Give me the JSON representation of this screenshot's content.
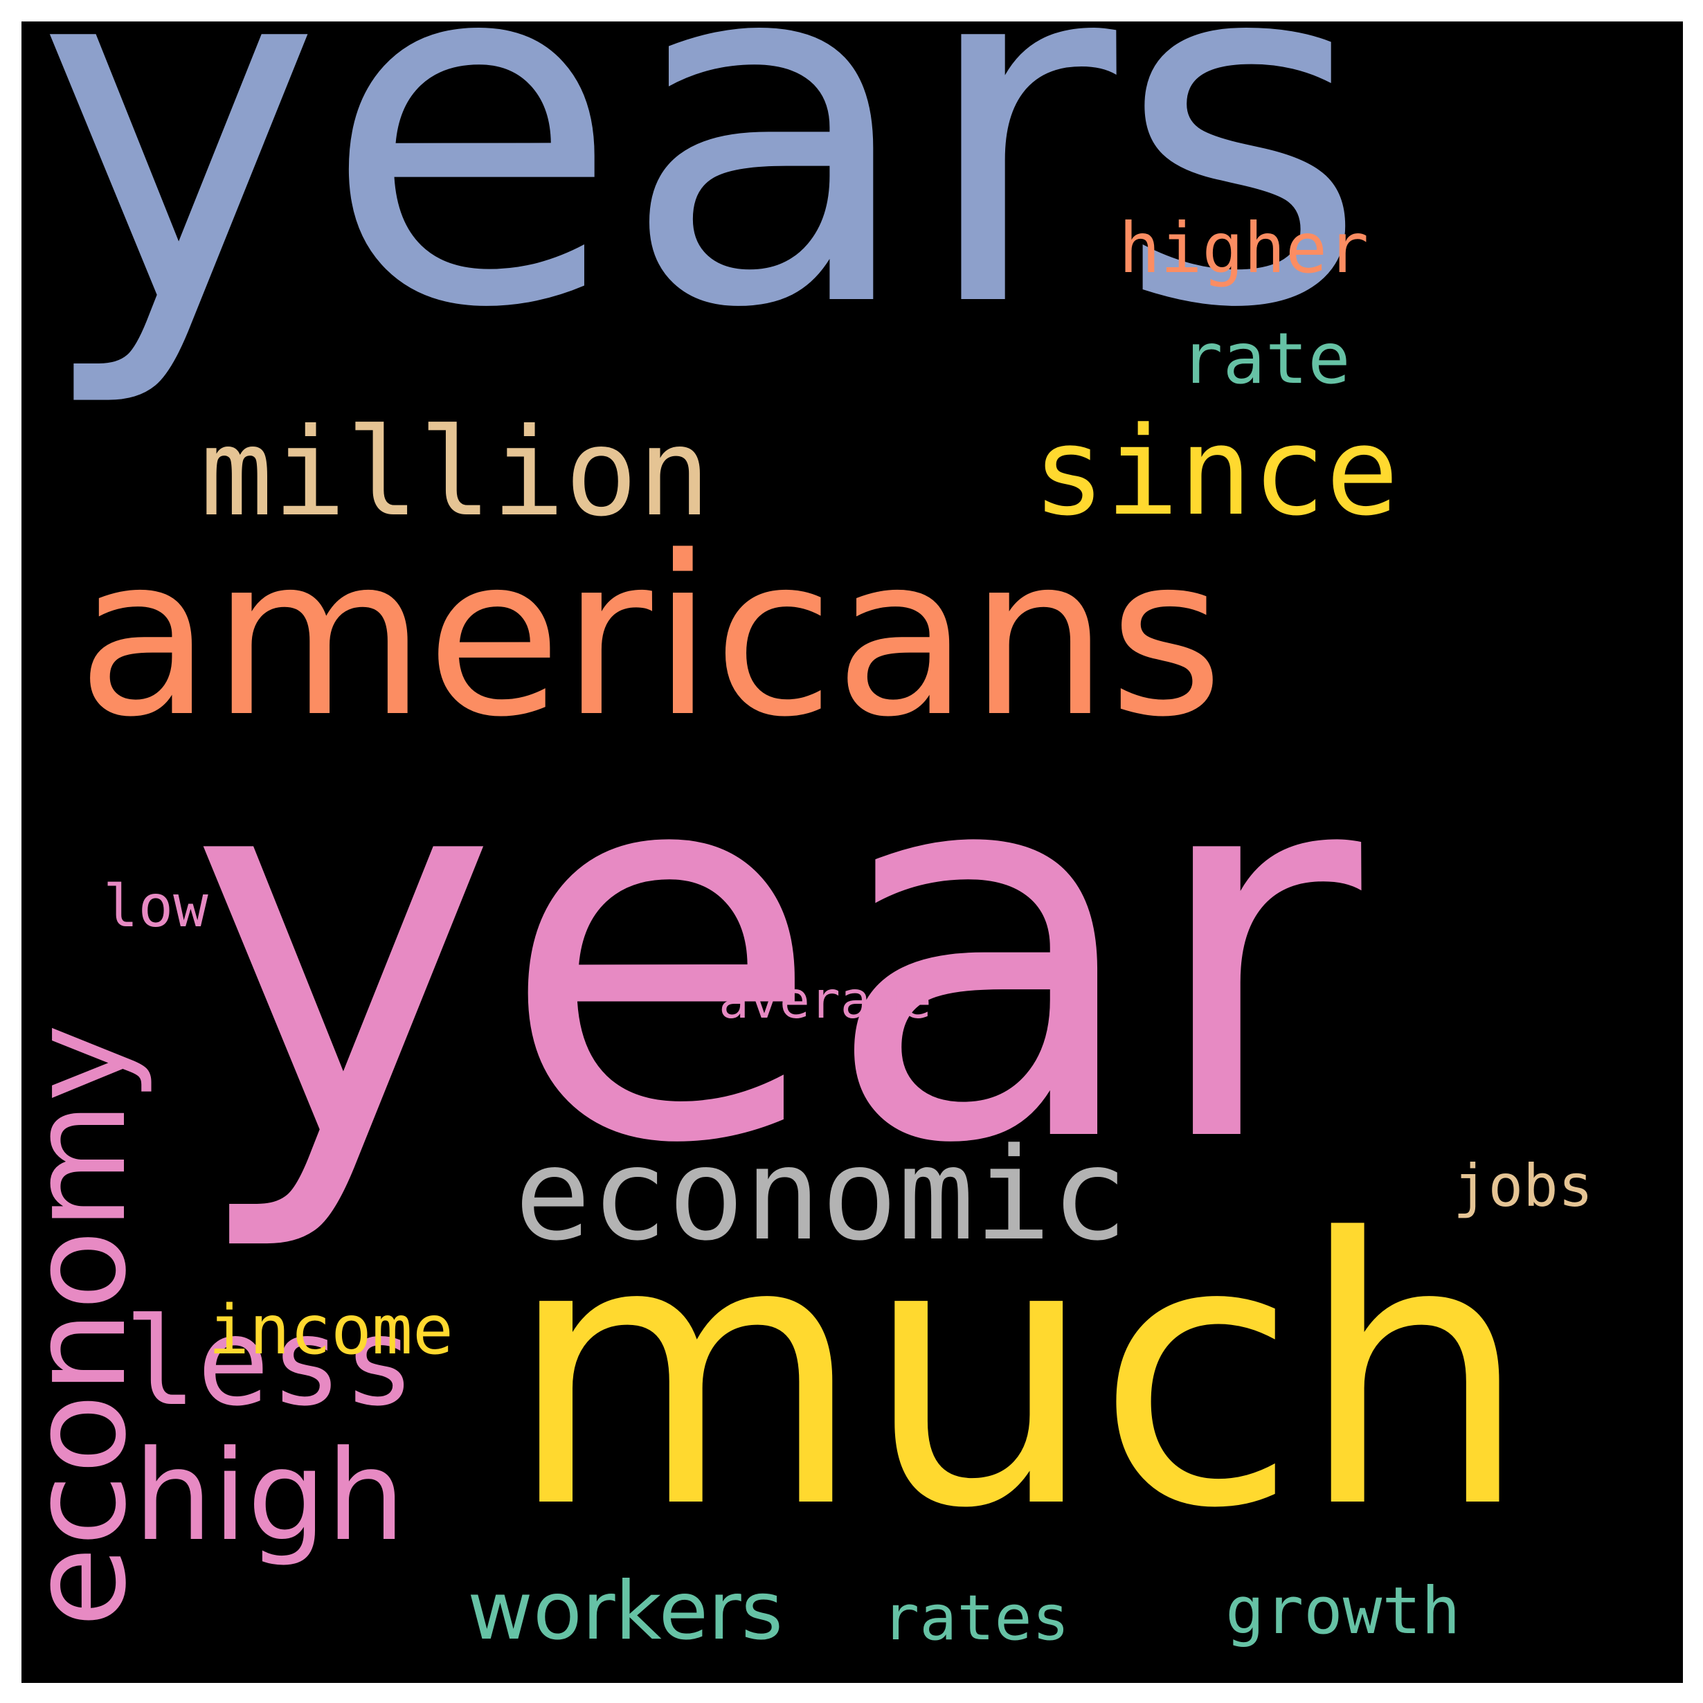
{
  "background_color": "#000000",
  "words": [
    {
      "key": "years",
      "text": "years",
      "color": "#8DA0CB"
    },
    {
      "key": "americans",
      "text": "americans",
      "color": "#FC8D62"
    },
    {
      "key": "year",
      "text": "year",
      "color": "#E78AC3"
    },
    {
      "key": "much",
      "text": "much",
      "color": "#FFD92F"
    },
    {
      "key": "economic",
      "text": "economic",
      "color": "#B3B3B3"
    },
    {
      "key": "economy",
      "text": "economy",
      "color": "#E78AC3"
    },
    {
      "key": "million",
      "text": "million",
      "color": "#E5C494"
    },
    {
      "key": "since",
      "text": "since",
      "color": "#FFD92F"
    },
    {
      "key": "higher",
      "text": "higher",
      "color": "#FC8D62"
    },
    {
      "key": "rate",
      "text": "rate",
      "color": "#66C2A5"
    },
    {
      "key": "less",
      "text": "less",
      "color": "#E78AC3"
    },
    {
      "key": "high",
      "text": "high",
      "color": "#E78AC3"
    },
    {
      "key": "income",
      "text": "income",
      "color": "#FFD92F"
    },
    {
      "key": "workers",
      "text": "workers",
      "color": "#66C2A5"
    },
    {
      "key": "rates",
      "text": "rates",
      "color": "#66C2A5"
    },
    {
      "key": "growth",
      "text": "growth",
      "color": "#66C2A5"
    },
    {
      "key": "jobs",
      "text": "jobs",
      "color": "#E5C494"
    },
    {
      "key": "low",
      "text": "low",
      "color": "#E78AC3"
    },
    {
      "key": "average",
      "text": "average",
      "color": "#E78AC3"
    }
  ]
}
